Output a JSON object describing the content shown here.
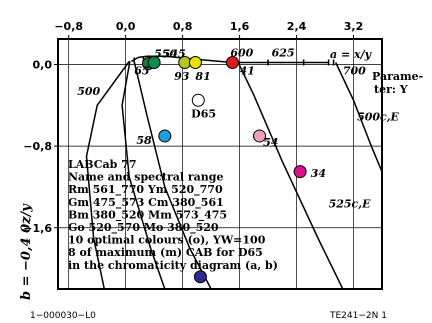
{
  "chart_data": {
    "type": "scatter",
    "title": "",
    "xlabel": "a = x/y",
    "ylabel": "b = −0,4 0z/y",
    "xlim": [
      -0.95,
      3.6
    ],
    "ylim": [
      -2.2,
      0.25
    ],
    "x_ticks": [
      -0.8,
      0.0,
      0.8,
      1.6,
      2.4,
      3.2
    ],
    "x_tick_labels": [
      "−0,8",
      "0,0",
      "0,8",
      "1,6",
      "2,4",
      "3,2"
    ],
    "y_ticks": [
      0.0,
      -0.8,
      -1.6
    ],
    "y_tick_labels": [
      "0,0",
      "−0,8",
      "−1,6"
    ],
    "parameter_label_1": "Parame-",
    "parameter_label_2": "ter: Y",
    "spectral_locus": [
      {
        "x": 0.08,
        "y": 0.03
      },
      {
        "x": 0.18,
        "y": 0.07
      },
      {
        "x": 0.3,
        "y": 0.08
      },
      {
        "x": 0.56,
        "y": 0.08
      },
      {
        "x": 1.0,
        "y": 0.05
      },
      {
        "x": 1.5,
        "y": 0.02
      },
      {
        "x": 2.0,
        "y": 0.02
      },
      {
        "x": 2.5,
        "y": 0.02
      },
      {
        "x": 2.85,
        "y": 0.02
      }
    ],
    "boundary_lines": [
      {
        "name": "500c,E",
        "points": [
          {
            "x": 2.95,
            "y": 0.02
          },
          {
            "x": 3.2,
            "y": -0.35
          },
          {
            "x": 3.45,
            "y": -0.8
          },
          {
            "x": 3.6,
            "y": -1.05
          }
        ]
      },
      {
        "name": "525c,E",
        "points": [
          {
            "x": 1.58,
            "y": 0.02
          },
          {
            "x": 1.8,
            "y": -0.3
          },
          {
            "x": 2.2,
            "y": -0.95
          },
          {
            "x": 2.7,
            "y": -1.7
          },
          {
            "x": 3.05,
            "y": -2.2
          }
        ]
      },
      {
        "name": "inner-1",
        "points": [
          {
            "x": 0.12,
            "y": 0.03
          },
          {
            "x": 0.3,
            "y": -0.5
          },
          {
            "x": 0.55,
            "y": -1.2
          },
          {
            "x": 0.9,
            "y": -1.8
          },
          {
            "x": 1.2,
            "y": -2.2
          }
        ]
      },
      {
        "name": "inner-2",
        "points": [
          {
            "x": 0.06,
            "y": 0.03
          },
          {
            "x": -0.05,
            "y": -0.4
          },
          {
            "x": 0.05,
            "y": -1.1
          },
          {
            "x": 0.35,
            "y": -1.8
          },
          {
            "x": 0.55,
            "y": -2.2
          }
        ]
      },
      {
        "name": "inner-3",
        "points": [
          {
            "x": 0.05,
            "y": 0.03
          },
          {
            "x": -0.4,
            "y": -0.4
          },
          {
            "x": -0.55,
            "y": -0.9
          },
          {
            "x": -0.45,
            "y": -1.7
          },
          {
            "x": -0.3,
            "y": -2.2
          }
        ]
      }
    ],
    "wavelength_labels": [
      {
        "text": "550",
        "x": 0.4,
        "y": 0.07
      },
      {
        "text": "545",
        "x": 0.52,
        "y": 0.07
      },
      {
        "text": "600",
        "x": 1.47,
        "y": 0.08
      },
      {
        "text": "625",
        "x": 2.05,
        "y": 0.08
      },
      {
        "text": "700",
        "x": 3.05,
        "y": -0.1
      },
      {
        "text": "65",
        "x": 0.12,
        "y": -0.1
      },
      {
        "text": "93",
        "x": 0.68,
        "y": -0.15
      },
      {
        "text": "81",
        "x": 0.98,
        "y": -0.15
      },
      {
        "text": "41",
        "x": 1.6,
        "y": -0.1
      },
      {
        "text": "500",
        "x": -0.68,
        "y": -0.3
      },
      {
        "text": "58",
        "x": 0.15,
        "y": -0.78
      },
      {
        "text": "54",
        "x": 1.93,
        "y": -0.8
      },
      {
        "text": "34",
        "x": 2.6,
        "y": -1.1
      },
      {
        "text": "500c,E",
        "x": 3.25,
        "y": -0.55
      },
      {
        "text": "525c,E",
        "x": 2.85,
        "y": -1.4
      }
    ],
    "markers": [
      {
        "x": 0.32,
        "y": 0.01,
        "color": "#1a7a3a",
        "kind": "filled"
      },
      {
        "x": 0.4,
        "y": 0.02,
        "color": "#0f8a50",
        "kind": "filled"
      },
      {
        "x": 0.83,
        "y": 0.02,
        "color": "#b8c41e",
        "kind": "filled"
      },
      {
        "x": 0.98,
        "y": 0.02,
        "color": "#e8e000",
        "kind": "filled"
      },
      {
        "x": 1.5,
        "y": 0.02,
        "color": "#e01818",
        "kind": "filled"
      },
      {
        "x": 0.55,
        "y": -0.7,
        "color": "#1e9ee0",
        "kind": "filled"
      },
      {
        "x": 1.88,
        "y": -0.7,
        "color": "#f0a0b8",
        "kind": "filled"
      },
      {
        "x": 2.45,
        "y": -1.05,
        "color": "#e0108c",
        "kind": "filled"
      },
      {
        "x": 1.02,
        "y": -0.35,
        "color": "#ffffff",
        "kind": "open"
      },
      {
        "x": 1.05,
        "y": -2.08,
        "color": "#2a2a90",
        "kind": "filled"
      }
    ],
    "small_ticks": [
      {
        "x": 0.12,
        "y": 0.04
      },
      {
        "x": 0.25,
        "y": 0.05
      },
      {
        "x": 1.5,
        "y": 0.02
      },
      {
        "x": 2.0,
        "y": 0.02
      },
      {
        "x": 2.5,
        "y": 0.02
      },
      {
        "x": 2.85,
        "y": 0.02
      },
      {
        "x": 2.92,
        "y": 0.02
      }
    ],
    "point_labels": [
      {
        "text": "D65",
        "x": 0.92,
        "y": -0.52
      }
    ],
    "legend_lines": [
      "LABCab 77",
      "Name and spectral range",
      "Rm 561_770  Ym 520_770",
      "Gm 475_573  Cm 380_561",
      "Bm 380_520  Mm 573_475",
      "Go 520_570  Mo 380_520",
      "10 optimal colours (o), YW=100",
      "8 of maximum (m) CAB for D65",
      "in the chromaticity diagram (a, b)"
    ],
    "footer_left": "1−000030−L0",
    "footer_right": "TE241−2N  1"
  }
}
